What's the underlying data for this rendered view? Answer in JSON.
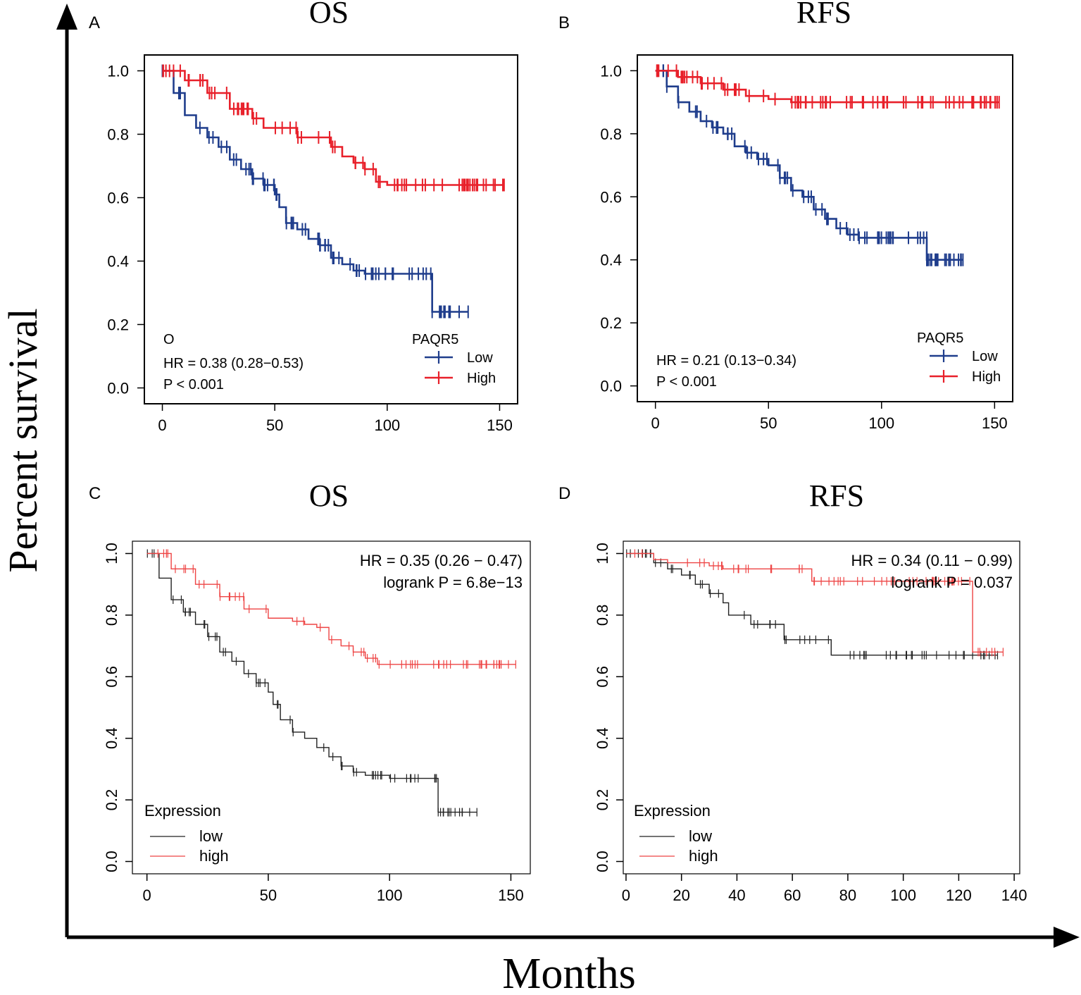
{
  "figure": {
    "y_axis_label": "Percent survival",
    "x_axis_label": "Months",
    "colors": {
      "blue": "#1f3d8c",
      "red": "#e8202a",
      "black": "#222222",
      "light_red": "#ee4444"
    }
  },
  "chart_data": [
    {
      "panel": "A",
      "type": "line",
      "title": "OS",
      "xlabel": "",
      "ylabel": "",
      "xlim": [
        -8,
        158
      ],
      "ylim": [
        -0.05,
        1.05
      ],
      "x_ticks": [
        0,
        50,
        100,
        150
      ],
      "x_tick_labels": [
        "0",
        "50",
        "100",
        "150"
      ],
      "y_ticks": [
        0.0,
        0.2,
        0.4,
        0.6,
        0.8,
        1.0
      ],
      "y_tick_labels": [
        "0.0",
        "0.2",
        "0.4",
        "0.6",
        "0.8",
        "1.0"
      ],
      "marker": "O",
      "annotations": [
        "HR = 0.38 (0.28−0.53)",
        "P < 0.001"
      ],
      "legend": {
        "title": "PAQR5",
        "position": "bottom-right",
        "entries": [
          "Low",
          "High"
        ]
      },
      "series": [
        {
          "name": "Low",
          "color": "#1f3d8c",
          "x": [
            0,
            5,
            10,
            15,
            20,
            25,
            30,
            35,
            40,
            45,
            50,
            52,
            55,
            60,
            65,
            70,
            75,
            80,
            85,
            90,
            100,
            110,
            118,
            120,
            136
          ],
          "y": [
            1.0,
            0.93,
            0.86,
            0.82,
            0.79,
            0.76,
            0.72,
            0.69,
            0.66,
            0.64,
            0.61,
            0.57,
            0.52,
            0.5,
            0.47,
            0.45,
            0.41,
            0.39,
            0.37,
            0.36,
            0.36,
            0.36,
            0.36,
            0.24,
            0.24
          ]
        },
        {
          "name": "High",
          "color": "#e8202a",
          "x": [
            0,
            10,
            20,
            30,
            40,
            45,
            50,
            60,
            65,
            70,
            75,
            80,
            85,
            90,
            95,
            100,
            152
          ],
          "y": [
            1.0,
            0.97,
            0.93,
            0.88,
            0.85,
            0.82,
            0.82,
            0.79,
            0.79,
            0.79,
            0.76,
            0.73,
            0.71,
            0.69,
            0.65,
            0.64,
            0.64
          ]
        }
      ]
    },
    {
      "panel": "B",
      "type": "line",
      "title": "RFS",
      "xlabel": "",
      "ylabel": "",
      "xlim": [
        -8,
        158
      ],
      "ylim": [
        -0.05,
        1.05
      ],
      "x_ticks": [
        0,
        50,
        100,
        150
      ],
      "x_tick_labels": [
        "0",
        "50",
        "100",
        "150"
      ],
      "y_ticks": [
        0.0,
        0.2,
        0.4,
        0.6,
        0.8,
        1.0
      ],
      "y_tick_labels": [
        "0.0",
        "0.2",
        "0.4",
        "0.6",
        "0.8",
        "1.0"
      ],
      "annotations": [
        "HR = 0.21 (0.13−0.34)",
        "P < 0.001"
      ],
      "legend": {
        "title": "PAQR5",
        "position": "bottom-right",
        "entries": [
          "Low",
          "High"
        ]
      },
      "series": [
        {
          "name": "Low",
          "color": "#1f3d8c",
          "x": [
            0,
            5,
            10,
            15,
            20,
            25,
            30,
            35,
            40,
            45,
            50,
            55,
            60,
            65,
            70,
            75,
            80,
            85,
            90,
            100,
            110,
            118,
            120,
            136
          ],
          "y": [
            1.0,
            0.95,
            0.9,
            0.87,
            0.84,
            0.82,
            0.8,
            0.76,
            0.74,
            0.72,
            0.7,
            0.66,
            0.62,
            0.6,
            0.56,
            0.53,
            0.5,
            0.48,
            0.47,
            0.47,
            0.47,
            0.47,
            0.4,
            0.4
          ]
        },
        {
          "name": "High",
          "color": "#e8202a",
          "x": [
            0,
            10,
            20,
            30,
            40,
            50,
            60,
            70,
            152
          ],
          "y": [
            1.0,
            0.98,
            0.96,
            0.94,
            0.92,
            0.91,
            0.9,
            0.9,
            0.9
          ]
        }
      ]
    },
    {
      "panel": "C",
      "type": "line",
      "title": "OS",
      "xlabel": "",
      "ylabel": "",
      "xlim": [
        -6,
        158
      ],
      "ylim": [
        -0.04,
        1.04
      ],
      "x_ticks": [
        0,
        50,
        100,
        150
      ],
      "x_tick_labels": [
        "0",
        "50",
        "100",
        "150"
      ],
      "y_ticks": [
        0.0,
        0.2,
        0.4,
        0.6,
        0.8,
        1.0
      ],
      "y_tick_labels": [
        "0.0",
        "0.2",
        "0.4",
        "0.6",
        "0.8",
        "1.0"
      ],
      "annotations": [
        "HR = 0.35 (0.26 − 0.47)",
        "logrank P = 6.8e−13"
      ],
      "legend": {
        "title": "Expression",
        "position": "bottom-left",
        "entries": [
          "low",
          "high"
        ]
      },
      "series": [
        {
          "name": "low",
          "color": "#222222",
          "x": [
            0,
            5,
            10,
            15,
            20,
            25,
            30,
            35,
            40,
            45,
            50,
            52,
            55,
            60,
            65,
            70,
            75,
            80,
            85,
            90,
            100,
            110,
            118,
            120,
            136
          ],
          "y": [
            1.0,
            0.92,
            0.85,
            0.81,
            0.77,
            0.73,
            0.68,
            0.65,
            0.61,
            0.58,
            0.55,
            0.51,
            0.46,
            0.42,
            0.4,
            0.37,
            0.34,
            0.31,
            0.29,
            0.28,
            0.27,
            0.27,
            0.27,
            0.16,
            0.16
          ]
        },
        {
          "name": "high",
          "color": "#ee4444",
          "x": [
            0,
            10,
            20,
            30,
            40,
            50,
            60,
            65,
            70,
            75,
            80,
            85,
            90,
            95,
            100,
            152
          ],
          "y": [
            1.0,
            0.95,
            0.9,
            0.86,
            0.82,
            0.79,
            0.78,
            0.77,
            0.76,
            0.72,
            0.7,
            0.68,
            0.66,
            0.64,
            0.64,
            0.64
          ]
        }
      ]
    },
    {
      "panel": "D",
      "type": "line",
      "title": "RFS",
      "xlabel": "",
      "ylabel": "",
      "xlim": [
        -1,
        142
      ],
      "ylim": [
        -0.04,
        1.04
      ],
      "x_ticks": [
        0,
        20,
        40,
        60,
        80,
        100,
        120,
        140
      ],
      "x_tick_labels": [
        "0",
        "20",
        "40",
        "60",
        "80",
        "100",
        "120",
        "140"
      ],
      "y_ticks": [
        0.0,
        0.2,
        0.4,
        0.6,
        0.8,
        1.0
      ],
      "y_tick_labels": [
        "0.0",
        "0.2",
        "0.4",
        "0.6",
        "0.8",
        "1.0"
      ],
      "annotations": [
        "HR = 0.34 (0.11 − 0.99)",
        "logrank P = 0.037"
      ],
      "legend": {
        "title": "Expression",
        "position": "bottom-left",
        "entries": [
          "low",
          "high"
        ]
      },
      "series": [
        {
          "name": "low",
          "color": "#222222",
          "x": [
            0,
            5,
            10,
            15,
            20,
            25,
            30,
            35,
            37,
            40,
            45,
            55,
            57,
            60,
            72,
            74,
            134
          ],
          "y": [
            1.0,
            1.0,
            0.97,
            0.95,
            0.93,
            0.9,
            0.87,
            0.84,
            0.8,
            0.8,
            0.77,
            0.77,
            0.72,
            0.72,
            0.72,
            0.67,
            0.67
          ]
        },
        {
          "name": "high",
          "color": "#ee4444",
          "x": [
            0,
            5,
            10,
            15,
            20,
            25,
            30,
            35,
            40,
            60,
            66,
            67,
            80,
            100,
            120,
            124,
            125,
            136
          ],
          "y": [
            1.0,
            1.0,
            0.98,
            0.97,
            0.97,
            0.97,
            0.96,
            0.95,
            0.95,
            0.95,
            0.95,
            0.91,
            0.91,
            0.91,
            0.91,
            0.91,
            0.68,
            0.68
          ]
        }
      ]
    }
  ]
}
